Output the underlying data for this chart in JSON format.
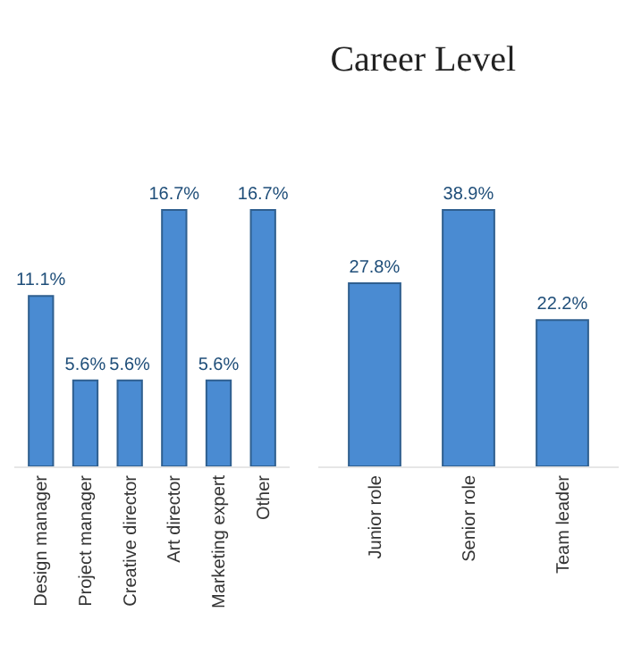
{
  "chart_data": [
    {
      "type": "bar",
      "categories": [
        "Design manager",
        "Project manager",
        "Creative director",
        "Art director",
        "Marketing expert",
        "Other"
      ],
      "values": [
        11.1,
        5.6,
        5.6,
        16.7,
        5.6,
        16.7
      ],
      "value_labels": [
        "11.1%",
        "5.6%",
        "5.6%",
        "16.7%",
        "5.6%",
        "16.7%"
      ],
      "color": "#4a8bd2"
    },
    {
      "type": "bar",
      "title": "Career Level",
      "categories": [
        "Junior role",
        "Senior role",
        "Team leader"
      ],
      "values": [
        27.8,
        38.9,
        22.2
      ],
      "value_labels": [
        "27.8%",
        "38.9%",
        "22.2%"
      ],
      "color": "#4a8bd2"
    }
  ]
}
